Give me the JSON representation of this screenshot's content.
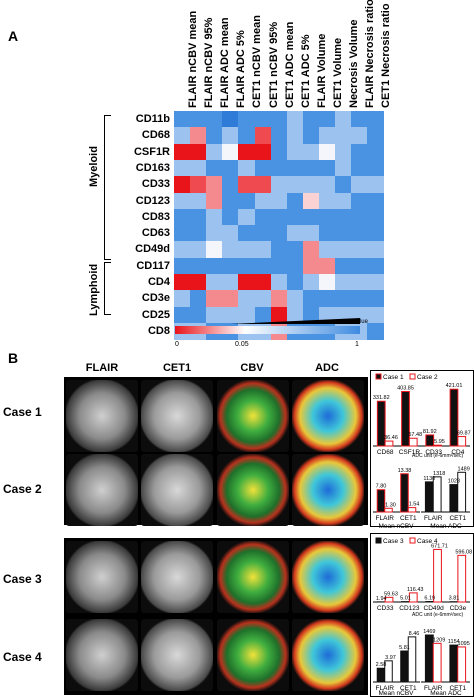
{
  "panel_a_letter": "A",
  "panel_b_letter": "B",
  "heatmap": {
    "columns": [
      "FLAIR nCBV mean",
      "FLAIR nCBV 95%",
      "FLAIR ADC mean",
      "FLAIR ADC 5%",
      "CET1 nCBV mean",
      "CET1 nCBV 95%",
      "CET1 ADC mean",
      "CET1 ADC 5%",
      "FLAIR Volume",
      "CET1 Volume",
      "Necrosis Volume",
      "FLAIR Necrosis ratio",
      "CET1 Necrosis ratio"
    ],
    "rows": [
      "CD11b",
      "CD68",
      "CSF1R",
      "CD163",
      "CD33",
      "CD123",
      "CD83",
      "CD63",
      "CD49d",
      "CD117",
      "CD4",
      "CD3e",
      "CD25",
      "CD8"
    ],
    "group_myeloid": "Myeloid",
    "group_lymphoid": "Lymphoid",
    "scale_min": "0",
    "scale_mid": "0.05",
    "scale_max": "1",
    "scale_title": "P value",
    "colors": {
      "strong_red": "#e8141a",
      "mid_red": "#f58a8e",
      "light_red": "#fbd2d3",
      "white": "#f4f6fb",
      "light_blue": "#bcd4f3",
      "mid_blue": "#7aaee8",
      "blue": "#3f8be0"
    },
    "cells": [
      [
        "b",
        "b",
        "b",
        "m",
        "b",
        "b",
        "b",
        "lb",
        "b",
        "b",
        "lb",
        "b",
        "b"
      ],
      [
        "lb",
        "r3",
        "b",
        "lb",
        "b",
        "r2",
        "b",
        "lb",
        "b",
        "lb",
        "lb",
        "lb",
        "b"
      ],
      [
        "R",
        "R",
        "lb",
        "w",
        "R",
        "R",
        "b",
        "lb",
        "lb",
        "w",
        "lb",
        "b",
        "b"
      ],
      [
        "lb",
        "lb",
        "b",
        "b",
        "lb",
        "b",
        "b",
        "b",
        "b",
        "b",
        "lb",
        "b",
        "b"
      ],
      [
        "R",
        "r2",
        "r3",
        "b",
        "r2",
        "r2",
        "lb",
        "lb",
        "lb",
        "lb",
        "b",
        "lb",
        "lb"
      ],
      [
        "lb",
        "lb",
        "r3",
        "b",
        "b",
        "lb",
        "lb",
        "b",
        "lr",
        "lb",
        "lb",
        "b",
        "b"
      ],
      [
        "b",
        "b",
        "lb",
        "b",
        "lb",
        "b",
        "b",
        "b",
        "b",
        "b",
        "b",
        "b",
        "b"
      ],
      [
        "b",
        "b",
        "lb",
        "lb",
        "b",
        "b",
        "b",
        "lb",
        "lb",
        "b",
        "b",
        "b",
        "b"
      ],
      [
        "lb",
        "lb",
        "w",
        "lb",
        "lb",
        "lb",
        "b",
        "b",
        "r3",
        "lb",
        "lb",
        "lb",
        "lb"
      ],
      [
        "b",
        "b",
        "b",
        "b",
        "b",
        "b",
        "b",
        "b",
        "r3",
        "r3",
        "b",
        "b",
        "b"
      ],
      [
        "R",
        "R",
        "lb",
        "lb",
        "R",
        "R",
        "lb",
        "b",
        "lb",
        "w",
        "lb",
        "lb",
        "lb"
      ],
      [
        "lb",
        "b",
        "r3",
        "r3",
        "lb",
        "lb",
        "r3",
        "lb",
        "b",
        "b",
        "b",
        "b",
        "b"
      ],
      [
        "b",
        "b",
        "lb",
        "lb",
        "lb",
        "b",
        "R",
        "lb",
        "b",
        "lb",
        "lb",
        "lb",
        "lb"
      ],
      [
        "lb",
        "lb",
        "b",
        "b",
        "lb",
        "lb",
        "r3",
        "b",
        "b",
        "b",
        "lb",
        "lb",
        "b"
      ]
    ]
  },
  "images": {
    "headers": [
      "FLAIR",
      "CET1",
      "CBV",
      "ADC"
    ],
    "cases": [
      "Case 1",
      "Case 2",
      "Case 3",
      "Case 4"
    ]
  },
  "charts": {
    "c12_top": {
      "legend": [
        "Case 1",
        "Case 2"
      ],
      "categories": [
        "CD68",
        "CSF1R",
        "CD33",
        "CD4"
      ],
      "case_a": [
        331.82,
        403.85,
        81.92,
        421.01
      ],
      "case_b": [
        36.46,
        57.48,
        5.95,
        69.87
      ],
      "labels_a": [
        "331.82",
        "403.85",
        "81.92",
        "421.01"
      ],
      "labels_b": [
        "36.46",
        "57.48",
        "5.95",
        "69.87"
      ]
    },
    "c12_bottom": {
      "unit": "ADC unit (e-6mm²/sec)",
      "categories": [
        "FLAIR",
        "CET1",
        "FLAIR",
        "CET1"
      ],
      "group_labels": [
        "Mean nCBV",
        "Mean ADC"
      ],
      "case_a": [
        7.8,
        13.38,
        1130,
        1028
      ],
      "case_b": [
        1.3,
        1.54,
        1318,
        1489
      ],
      "labels_a": [
        "7.80",
        "13.38",
        "1130",
        "1028"
      ],
      "labels_b": [
        "1.30",
        "1.54",
        "1318",
        "1489"
      ]
    },
    "c34_top": {
      "legend": [
        "Case 3",
        "Case 4"
      ],
      "unit": "ADC unit (e-6mm²/sec)",
      "categories": [
        "CD33",
        "CD123",
        "CD49d",
        "CD3e"
      ],
      "case_a": [
        1.94,
        5.01,
        6.19,
        3.81
      ],
      "case_b": [
        59.63,
        116.43,
        671.71,
        596.08
      ],
      "labels_a": [
        "1.94",
        "5.01",
        "6.19",
        "3.81"
      ],
      "labels_b": [
        "59.63",
        "116.43",
        "671.71",
        "596.08"
      ]
    },
    "c34_bottom": {
      "categories": [
        "FLAIR",
        "CET1",
        "FLAIR",
        "CET1"
      ],
      "group_labels": [
        "Mean nCBV",
        "Mean ADC"
      ],
      "case_a": [
        2.58,
        5.81,
        1469,
        1154
      ],
      "case_b": [
        3.97,
        8.46,
        1209,
        1095
      ],
      "labels_a": [
        "2.58",
        "5.81",
        "1469",
        "1154"
      ],
      "labels_b": [
        "3.97",
        "8.46",
        "1209",
        "1095"
      ]
    }
  }
}
